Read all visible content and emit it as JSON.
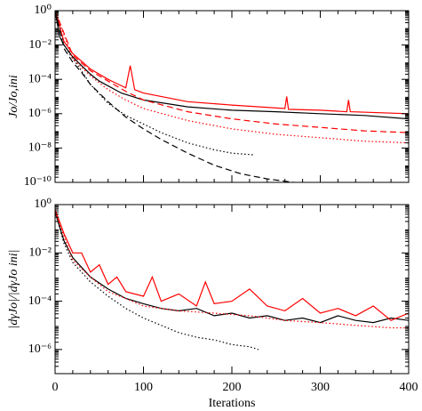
{
  "chart_data": [
    {
      "type": "line",
      "ylog": true,
      "ylabel": "Jo/Jo,ini",
      "xlim": [
        0,
        400
      ],
      "xticks": [
        0,
        100,
        200,
        300,
        400
      ],
      "ylim": [
        1e-10,
        1
      ],
      "yticks": [
        {
          "value": 1,
          "label": "10⁰"
        },
        {
          "value": 0.01,
          "label": "10⁻²"
        },
        {
          "value": 0.0001,
          "label": "10⁻⁴"
        },
        {
          "value": 1e-06,
          "label": "10⁻⁶"
        },
        {
          "value": 1e-08,
          "label": "10⁻⁸"
        },
        {
          "value": 1e-10,
          "label": "10⁻¹⁰"
        }
      ],
      "series": [
        {
          "color": "#000000",
          "dash": "solid",
          "x": [
            0,
            5,
            10,
            20,
            30,
            40,
            50,
            75,
            100,
            150,
            200,
            250,
            300,
            350,
            400
          ],
          "values": [
            1,
            0.032,
            0.01,
            0.002,
            0.00063,
            0.0002,
            7.9e-05,
            1.6e-05,
            6.3e-06,
            2.5e-06,
            1.6e-06,
            1.3e-06,
            1e-06,
            7.9e-07,
            5e-07
          ]
        },
        {
          "color": "#ff0000",
          "dash": "solid",
          "x": [
            0,
            10,
            20,
            40,
            60,
            80,
            85,
            90,
            100,
            150,
            200,
            260,
            262,
            264,
            300,
            330,
            332,
            334,
            400
          ],
          "values": [
            1,
            0.016,
            0.0032,
            0.0004,
            0.0001,
            3.2e-05,
            0.00063,
            2.5e-05,
            1.6e-05,
            5e-06,
            3.2e-06,
            2e-06,
            1e-05,
            1.8e-06,
            1.6e-06,
            1.3e-06,
            6.3e-06,
            1.3e-06,
            1e-06
          ]
        },
        {
          "color": "#000000",
          "dash": "dashed",
          "x": [
            0,
            10,
            20,
            30,
            40,
            60,
            80,
            100,
            120,
            150,
            180,
            210,
            240,
            270
          ],
          "values": [
            1,
            0.0063,
            0.001,
            0.00025,
            5e-05,
            5e-06,
            6.3e-07,
            1.3e-07,
            3.2e-08,
            5e-09,
            1e-09,
            3.2e-10,
            1.6e-10,
            1e-10
          ]
        },
        {
          "color": "#000000",
          "dash": "dotted",
          "x": [
            0,
            10,
            20,
            30,
            40,
            60,
            80,
            100,
            120,
            150,
            180,
            200,
            225
          ],
          "values": [
            1,
            0.01,
            0.0016,
            0.00032,
            5e-05,
            4e-06,
            7.9e-07,
            2.5e-07,
            7.9e-08,
            2e-08,
            7.9e-09,
            5e-09,
            4e-09
          ]
        },
        {
          "color": "#ff0000",
          "dash": "dashed",
          "x": [
            0,
            20,
            40,
            60,
            80,
            100,
            150,
            200,
            250,
            300,
            350,
            400
          ],
          "values": [
            1,
            0.0025,
            0.00032,
            7.9e-05,
            2e-05,
            6.3e-06,
            1.3e-06,
            5e-07,
            2.5e-07,
            1.6e-07,
            1e-07,
            7.9e-08
          ]
        },
        {
          "color": "#ff0000",
          "dash": "dotted",
          "x": [
            0,
            20,
            40,
            60,
            80,
            100,
            150,
            200,
            250,
            300,
            350,
            400
          ],
          "values": [
            1,
            0.0016,
            0.00016,
            2.5e-05,
            6.3e-06,
            2e-06,
            4e-07,
            1.3e-07,
            6.3e-08,
            4e-08,
            2.5e-08,
            2e-08
          ]
        }
      ]
    },
    {
      "type": "line",
      "ylog": true,
      "ylabel": "|dγJo|/|dγJo ini|",
      "xlabel": "Iterations",
      "xlim": [
        0,
        400
      ],
      "xticks": [
        0,
        100,
        200,
        300,
        400
      ],
      "ylim": [
        1e-07,
        1
      ],
      "yticks": [
        {
          "value": 1,
          "label": "10⁰"
        },
        {
          "value": 0.01,
          "label": "10⁻²"
        },
        {
          "value": 0.0001,
          "label": "10⁻⁴"
        },
        {
          "value": 1e-06,
          "label": "10⁻⁶"
        }
      ],
      "series": [
        {
          "color": "#000000",
          "dash": "solid",
          "x": [
            0,
            10,
            20,
            40,
            60,
            80,
            100,
            120,
            140,
            160,
            180,
            200,
            220,
            240,
            260,
            280,
            300,
            320,
            340,
            360,
            380,
            400
          ],
          "values": [
            0.5,
            0.032,
            0.0063,
            0.001,
            0.00032,
            0.00013,
            7.9e-05,
            5e-05,
            4e-05,
            5e-05,
            2.5e-05,
            3.2e-05,
            2e-05,
            2.5e-05,
            1.6e-05,
            2e-05,
            1.3e-05,
            2.5e-05,
            1.6e-05,
            1.3e-05,
            2e-05,
            1.6e-05
          ]
        },
        {
          "color": "#000000",
          "dash": "dotted",
          "x": [
            0,
            10,
            20,
            40,
            60,
            80,
            100,
            120,
            140,
            160,
            180,
            200,
            220,
            230
          ],
          "values": [
            0.5,
            0.025,
            0.004,
            0.00063,
            0.00016,
            5e-05,
            2e-05,
            1e-05,
            5e-06,
            3.2e-06,
            2.5e-06,
            1.6e-06,
            1.3e-06,
            1e-06
          ]
        },
        {
          "color": "#ff0000",
          "dash": "solid",
          "x": [
            0,
            10,
            20,
            30,
            40,
            50,
            60,
            70,
            80,
            100,
            110,
            120,
            140,
            160,
            170,
            180,
            200,
            220,
            240,
            260,
            280,
            300,
            320,
            340,
            360,
            380,
            400
          ],
          "values": [
            0.63,
            0.063,
            0.01,
            0.01,
            0.0016,
            0.0032,
            0.0005,
            0.001,
            0.00025,
            0.00016,
            0.001,
            0.0001,
            0.0002,
            6.3e-05,
            0.00063,
            7.9e-05,
            0.0001,
            0.00032,
            6.3e-05,
            4e-05,
            0.00013,
            3.2e-05,
            5e-05,
            2.5e-05,
            6.3e-05,
            1.6e-05,
            3.2e-05
          ]
        },
        {
          "color": "#ff0000",
          "dash": "dotted",
          "x": [
            0,
            20,
            40,
            60,
            80,
            100,
            140,
            180,
            220,
            260,
            300,
            340,
            380,
            400
          ],
          "values": [
            0.5,
            0.005,
            0.001,
            0.00025,
            0.00013,
            6.3e-05,
            4e-05,
            3.2e-05,
            2.5e-05,
            1.6e-05,
            1.3e-05,
            1e-05,
            7.9e-06,
            7.9e-06
          ]
        }
      ]
    }
  ]
}
